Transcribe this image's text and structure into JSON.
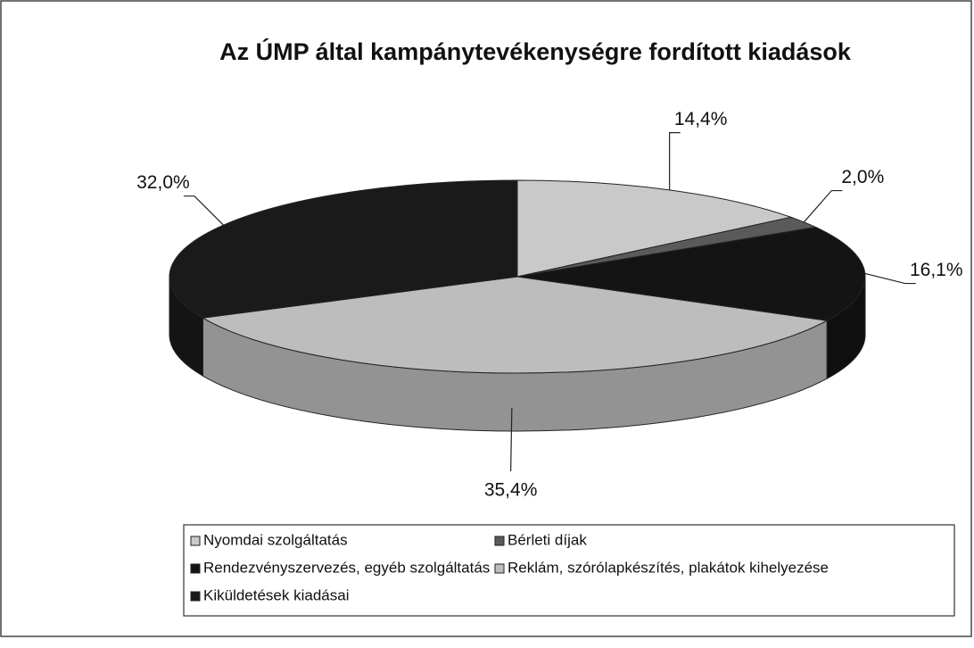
{
  "chart_data": {
    "type": "pie",
    "title": "Az ÚMP által kampánytevékenységre fordított kiadások",
    "categories": [
      "Nyomdai szolgáltatás",
      "Bérleti díjak",
      "Rendezvényszervezés, egyéb szolgáltatás",
      "Reklám, szórólapkészítés, plakátok kihelyezése",
      "Kiküldetések kiadásai"
    ],
    "values": [
      14.4,
      2.0,
      16.1,
      35.4,
      32.0
    ],
    "value_labels": [
      "14,4%",
      "2,0%",
      "16,1%",
      "35,4%",
      "32,0%"
    ],
    "colors": [
      "#c9c9c9",
      "#5a5a5a",
      "#141414",
      "#bdbdbd",
      "#1a1a1a"
    ],
    "legend": "bottom"
  }
}
